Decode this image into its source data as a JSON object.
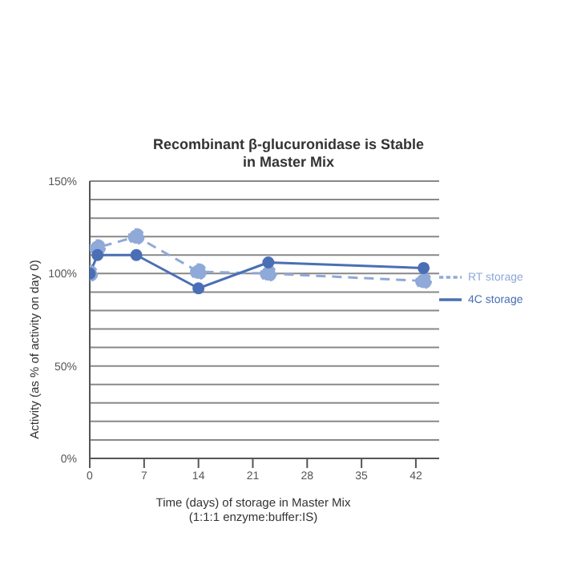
{
  "chart_data": {
    "type": "line",
    "title": "Recombinant β-glucuronidase is Stable\nin Master Mix",
    "xlabel": "Time (days) of storage in Master Mix\n(1:1:1 enzyme:buffer:IS)",
    "ylabel": "Activity (as % of activity on day 0)",
    "x": [
      0,
      1,
      6,
      14,
      23,
      43
    ],
    "series": [
      {
        "name": "RT storage",
        "color": "#8fa9d8",
        "line_style": "dashed",
        "values": [
          100,
          114,
          120,
          101,
          100,
          96
        ]
      },
      {
        "name": "4C storage",
        "color": "#4a6fb5",
        "line_style": "solid",
        "values": [
          100,
          110,
          110,
          92,
          106,
          103
        ]
      }
    ],
    "xlim": [
      0,
      45
    ],
    "xticks": [
      0,
      7,
      14,
      21,
      28,
      35,
      42
    ],
    "ylim": [
      0,
      150
    ],
    "yticks": [
      {
        "value": 0,
        "label": "0%"
      },
      {
        "value": 10,
        "label": null
      },
      {
        "value": 20,
        "label": null
      },
      {
        "value": 30,
        "label": null
      },
      {
        "value": 40,
        "label": null
      },
      {
        "value": 50,
        "label": "50%"
      },
      {
        "value": 60,
        "label": null
      },
      {
        "value": 70,
        "label": null
      },
      {
        "value": 80,
        "label": null
      },
      {
        "value": 90,
        "label": null
      },
      {
        "value": 100,
        "label": "100%"
      },
      {
        "value": 110,
        "label": null
      },
      {
        "value": 120,
        "label": null
      },
      {
        "value": 130,
        "label": null
      },
      {
        "value": 140,
        "label": null
      },
      {
        "value": 150,
        "label": "150%"
      }
    ],
    "grid": "y",
    "legend": "right",
    "marker": "circle"
  }
}
